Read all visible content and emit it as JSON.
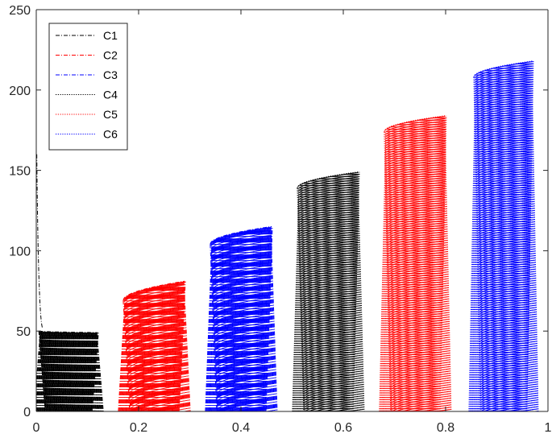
{
  "chart_data": {
    "type": "line",
    "title": "",
    "xlabel": "",
    "ylabel": "",
    "xlim": [
      0,
      1
    ],
    "ylim": [
      0,
      250
    ],
    "grid": false,
    "x_ticks": [
      {
        "value": 0,
        "label": "0"
      },
      {
        "value": 0.2,
        "label": "0.2"
      },
      {
        "value": 0.4,
        "label": "0.4"
      },
      {
        "value": 0.6,
        "label": "0.6"
      },
      {
        "value": 0.8,
        "label": "0.8"
      },
      {
        "value": 1,
        "label": "1"
      }
    ],
    "y_ticks": [
      {
        "value": 0,
        "label": "0"
      },
      {
        "value": 50,
        "label": "50"
      },
      {
        "value": 100,
        "label": "100"
      },
      {
        "value": 150,
        "label": "150"
      },
      {
        "value": 200,
        "label": "200"
      },
      {
        "value": 250,
        "label": "250"
      }
    ],
    "legend_position": "top-left",
    "series": [
      {
        "name": "C1",
        "color": "#000000",
        "line_style": "dash-dot",
        "x_start": 0.005,
        "x_end": 0.12,
        "y_start": 50,
        "y_end": 49
      },
      {
        "name": "C2",
        "color": "#ff0000",
        "line_style": "dash-dot",
        "x_start": 0.17,
        "x_end": 0.29,
        "y_start": 69,
        "y_end": 81
      },
      {
        "name": "C3",
        "color": "#0000ff",
        "line_style": "dash-dot",
        "x_start": 0.34,
        "x_end": 0.46,
        "y_start": 104,
        "y_end": 115
      },
      {
        "name": "C4",
        "color": "#000000",
        "line_style": "dotted",
        "x_start": 0.51,
        "x_end": 0.63,
        "y_start": 139,
        "y_end": 149
      },
      {
        "name": "C5",
        "color": "#ff0000",
        "line_style": "dotted",
        "x_start": 0.68,
        "x_end": 0.8,
        "y_start": 174,
        "y_end": 184
      },
      {
        "name": "C6",
        "color": "#0000ff",
        "line_style": "dotted",
        "x_start": 0.855,
        "x_end": 0.97,
        "y_start": 208,
        "y_end": 218
      }
    ]
  }
}
